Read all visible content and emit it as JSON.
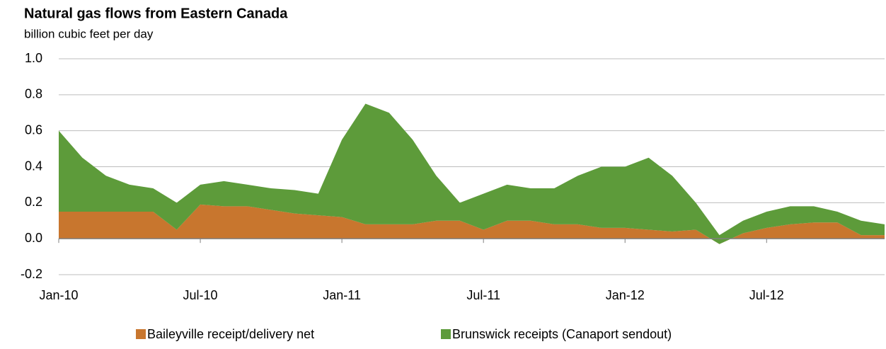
{
  "chart_data": {
    "type": "stacked_area",
    "title": "Natural gas flows from Eastern Canada",
    "subtitle": "billion cubic feet per day",
    "categories": [
      "Jan-10",
      null,
      null,
      null,
      null,
      null,
      "Jul-10",
      null,
      null,
      null,
      null,
      null,
      "Jan-11",
      null,
      null,
      null,
      null,
      null,
      "Jul-11",
      null,
      null,
      null,
      null,
      null,
      "Jan-12",
      null,
      null,
      null,
      null,
      null,
      "Jul-12",
      null,
      null,
      null,
      null,
      null
    ],
    "series": [
      {
        "name": "Baileyville receipt/delivery net",
        "color": "#c8762e",
        "values": [
          0.15,
          0.15,
          0.15,
          0.15,
          0.15,
          0.05,
          0.19,
          0.18,
          0.18,
          0.16,
          0.14,
          0.13,
          0.12,
          0.08,
          0.08,
          0.08,
          0.1,
          0.1,
          0.05,
          0.1,
          0.1,
          0.08,
          0.08,
          0.06,
          0.06,
          0.05,
          0.04,
          0.05,
          -0.03,
          0.03,
          0.06,
          0.08,
          0.09,
          0.09,
          0.02,
          0.02
        ]
      },
      {
        "name": "Brunswick receipts (Canaport sendout)",
        "color": "#5d9b3a",
        "values": [
          0.45,
          0.3,
          0.2,
          0.15,
          0.13,
          0.15,
          0.11,
          0.14,
          0.12,
          0.12,
          0.13,
          0.12,
          0.43,
          0.67,
          0.62,
          0.47,
          0.25,
          0.1,
          0.2,
          0.2,
          0.18,
          0.2,
          0.27,
          0.34,
          0.34,
          0.4,
          0.31,
          0.15,
          0.05,
          0.07,
          0.09,
          0.1,
          0.09,
          0.06,
          0.08,
          0.06
        ]
      }
    ],
    "ylim": [
      -0.2,
      1.0
    ],
    "yticks": [
      -0.2,
      {
        "value": 0,
        "label": "0.0"
      },
      0.2,
      0.4,
      0.6,
      0.8,
      {
        "value": 1,
        "label": "1.0"
      }
    ],
    "grid": true
  }
}
